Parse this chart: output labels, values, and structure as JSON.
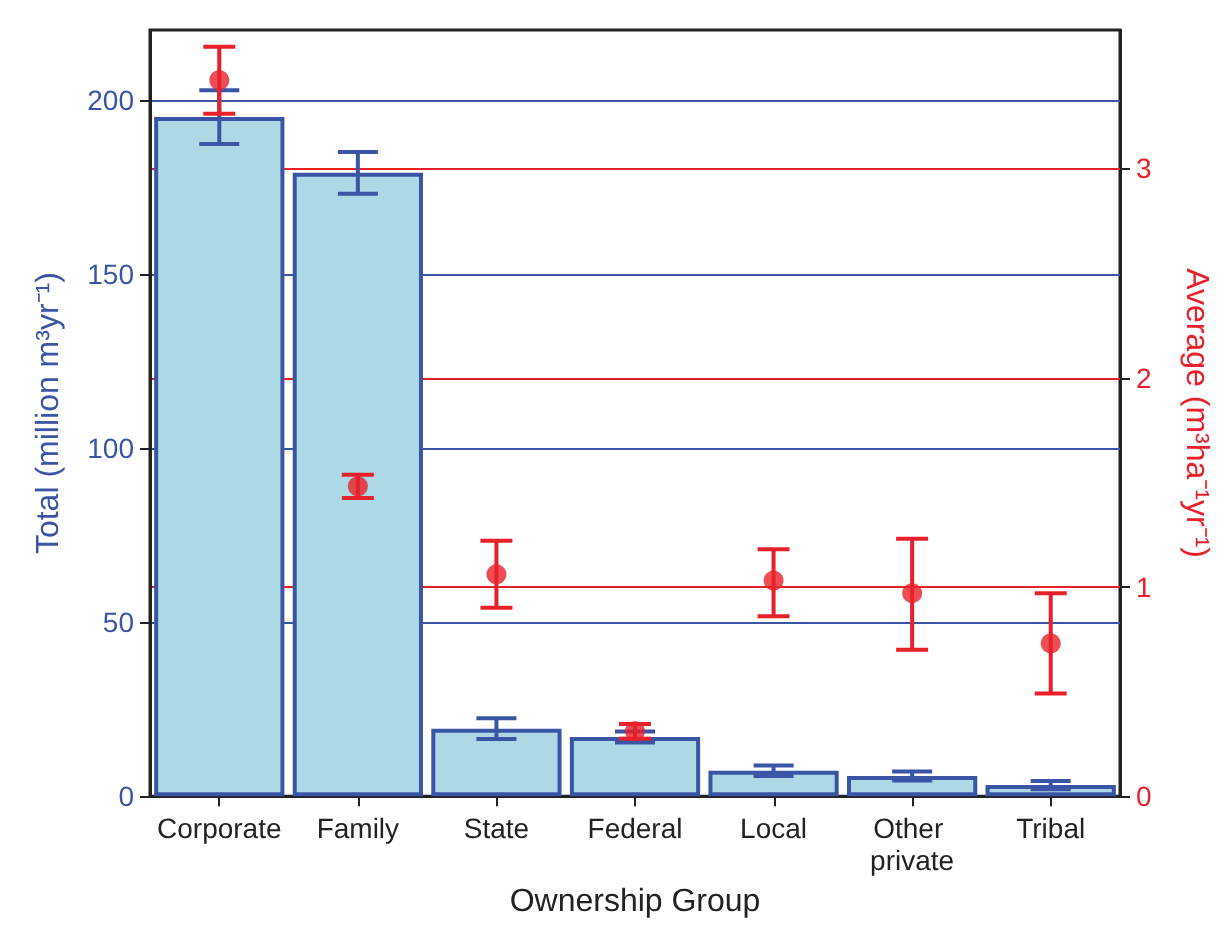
{
  "chart_data": {
    "type": "bar",
    "xlabel": "Ownership Group",
    "ylabel": "Total (million m³yr⁻¹)",
    "y2label": "Average (m³ha⁻¹yr⁻¹)",
    "categories": [
      "Corporate",
      "Family",
      "State",
      "Federal",
      "Local",
      "Other private",
      "Tribal"
    ],
    "series": [
      {
        "color": "#add8e6",
        "values": [
          195,
          179,
          19.4,
          17,
          7.3,
          5.8,
          3.2
        ],
        "errors": [
          7.7,
          6,
          3,
          1.6,
          1.5,
          1.3,
          1.2
        ]
      },
      {
        "type": "scatter",
        "axis": "y2",
        "color": "#e8202a",
        "x": [
          "Corporate",
          "Family",
          "State",
          "Federal",
          "Local",
          "Other private",
          "Tribal"
        ],
        "values": [
          3.42,
          1.48,
          1.06,
          0.31,
          1.03,
          0.97,
          0.73
        ],
        "errors": [
          0.16,
          0.055,
          0.16,
          0.035,
          [
            0.86,
            1.18
          ],
          [
            0.7,
            1.23
          ],
          [
            0.49,
            0.97
          ]
        ]
      }
    ],
    "ylim": [
      0,
      220
    ],
    "yticks": [
      0,
      50,
      100,
      150,
      200
    ],
    "y2lim": [
      0,
      3.66
    ],
    "y2ticks": [
      0,
      1,
      2,
      3
    ],
    "grid": true,
    "marker": "circle"
  }
}
